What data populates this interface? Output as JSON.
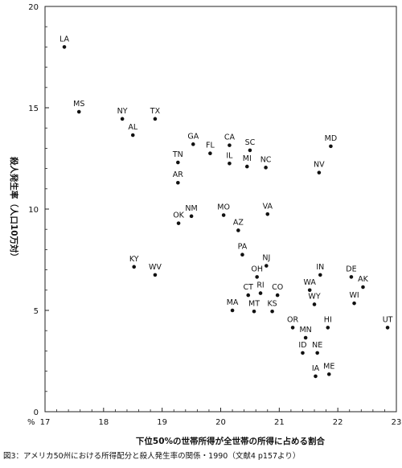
{
  "caption": "図3：アメリカ50州における所得配分と殺人発生率の関係・1990（文献4 p157より）",
  "chart_data": {
    "type": "scatter",
    "title": "",
    "xlabel": "下位50%の世帯所得が全世帯の所得に占める割合",
    "ylabel": "殺人発生率（人口10万対）",
    "xlim": [
      17,
      23
    ],
    "ylim": [
      0,
      20
    ],
    "xticks": [
      "17",
      "18",
      "19",
      "20",
      "21",
      "22",
      "23"
    ],
    "yticks": [
      "0",
      "5",
      "10",
      "15",
      "20"
    ],
    "x_unit": "%",
    "grid": false,
    "points": [
      {
        "label": "LA",
        "x": 17.33,
        "y": 18.0
      },
      {
        "label": "MS",
        "x": 17.58,
        "y": 14.8
      },
      {
        "label": "NY",
        "x": 18.32,
        "y": 14.45
      },
      {
        "label": "AL",
        "x": 18.5,
        "y": 13.65
      },
      {
        "label": "TX",
        "x": 18.88,
        "y": 14.45
      },
      {
        "label": "GA",
        "x": 19.53,
        "y": 13.2
      },
      {
        "label": "FL",
        "x": 19.82,
        "y": 12.75
      },
      {
        "label": "CA",
        "x": 20.15,
        "y": 13.15
      },
      {
        "label": "SC",
        "x": 20.5,
        "y": 12.9
      },
      {
        "label": "MD",
        "x": 21.88,
        "y": 13.1
      },
      {
        "label": "TN",
        "x": 19.27,
        "y": 12.3
      },
      {
        "label": "IL",
        "x": 20.15,
        "y": 12.25
      },
      {
        "label": "MI",
        "x": 20.45,
        "y": 12.1
      },
      {
        "label": "NC",
        "x": 20.77,
        "y": 12.05
      },
      {
        "label": "NV",
        "x": 21.68,
        "y": 11.8
      },
      {
        "label": "AR",
        "x": 19.27,
        "y": 11.3
      },
      {
        "label": "NM",
        "x": 19.5,
        "y": 9.65
      },
      {
        "label": "OK",
        "x": 19.28,
        "y": 9.3
      },
      {
        "label": "MO",
        "x": 20.05,
        "y": 9.7
      },
      {
        "label": "VA",
        "x": 20.8,
        "y": 9.75
      },
      {
        "label": "AZ",
        "x": 20.3,
        "y": 8.95
      },
      {
        "label": "PA",
        "x": 20.37,
        "y": 7.75
      },
      {
        "label": "NJ",
        "x": 20.78,
        "y": 7.2
      },
      {
        "label": "KY",
        "x": 18.52,
        "y": 7.15
      },
      {
        "label": "WV",
        "x": 18.88,
        "y": 6.75
      },
      {
        "label": "OH",
        "x": 20.62,
        "y": 6.65
      },
      {
        "label": "IN",
        "x": 21.7,
        "y": 6.75
      },
      {
        "label": "DE",
        "x": 22.23,
        "y": 6.65
      },
      {
        "label": "AK",
        "x": 22.43,
        "y": 6.15
      },
      {
        "label": "WA",
        "x": 21.52,
        "y": 6.0
      },
      {
        "label": "CT",
        "x": 20.47,
        "y": 5.75
      },
      {
        "label": "RI",
        "x": 20.68,
        "y": 5.85
      },
      {
        "label": "CO",
        "x": 20.97,
        "y": 5.75
      },
      {
        "label": "WY",
        "x": 21.6,
        "y": 5.3
      },
      {
        "label": "WI",
        "x": 22.28,
        "y": 5.35
      },
      {
        "label": "MA",
        "x": 20.2,
        "y": 5.0
      },
      {
        "label": "MT",
        "x": 20.57,
        "y": 4.95
      },
      {
        "label": "KS",
        "x": 20.88,
        "y": 4.95
      },
      {
        "label": "OR",
        "x": 21.23,
        "y": 4.15
      },
      {
        "label": "MN",
        "x": 21.45,
        "y": 3.65
      },
      {
        "label": "HI",
        "x": 21.83,
        "y": 4.15
      },
      {
        "label": "UT",
        "x": 22.85,
        "y": 4.15
      },
      {
        "label": "ID",
        "x": 21.4,
        "y": 2.9
      },
      {
        "label": "NE",
        "x": 21.65,
        "y": 2.9
      },
      {
        "label": "IA",
        "x": 21.62,
        "y": 1.75
      },
      {
        "label": "ME",
        "x": 21.85,
        "y": 1.85
      }
    ]
  }
}
